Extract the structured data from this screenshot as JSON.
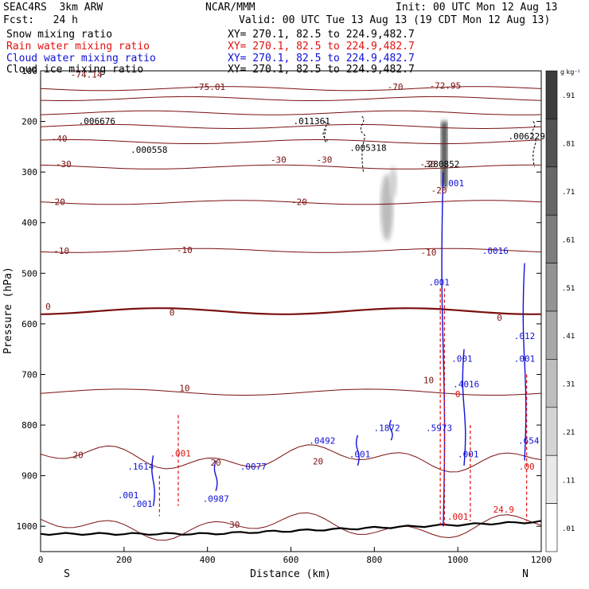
{
  "header": {
    "model": "SEAC4RS  3km ARW",
    "org": "NCAR/MMM",
    "init": "Init: 00 UTC Mon 12 Aug 13",
    "fcst": "Fcst:   24 h",
    "valid": "Valid: 00 UTC Tue 13 Aug 13 (19 CDT Mon 12 Aug 13)"
  },
  "fields": [
    {
      "name": "Snow mixing ratio",
      "xy": "XY= 270.1, 82.5 to 224.9,482.7",
      "color": "#000000"
    },
    {
      "name": "Rain water mixing ratio",
      "xy": "XY= 270.1, 82.5 to 224.9,482.7",
      "color": "#e01010"
    },
    {
      "name": "Cloud water mixing ratio",
      "xy": "XY= 270.1, 82.5 to 224.9,482.7",
      "color": "#1010d8"
    },
    {
      "name": "Cloud ice mixing ratio",
      "xy": "XY= 270.1, 82.5 to 224.9,482.7",
      "color": "#000000"
    }
  ],
  "chart_data": {
    "type": "cross-section",
    "xlabel": "Distance (km)",
    "ylabel": "Pressure (hPa)",
    "xlim": [
      0,
      1200
    ],
    "ylim": [
      1050,
      100
    ],
    "xticks": [
      "0",
      "200",
      "400",
      "600",
      "800",
      "1000",
      "1200"
    ],
    "yticks": [
      "100",
      "200",
      "300",
      "400",
      "500",
      "600",
      "700",
      "800",
      "900",
      "1000"
    ],
    "end_labels": {
      "left": "S",
      "right": "N"
    },
    "colorbar": {
      "unit": "g kg⁻¹",
      "labels": [
        ".91",
        ".81",
        ".71",
        ".61",
        ".51",
        ".41",
        ".31",
        ".21",
        ".11",
        ".01"
      ]
    },
    "temperature_contours": [
      {
        "value": -75,
        "p": 135
      },
      {
        "value": -70,
        "p": 155
      },
      {
        "value": -60,
        "p": 183
      },
      {
        "value": -50,
        "p": 210
      },
      {
        "value": -40,
        "p": 240
      },
      {
        "value": -30,
        "p": 290
      },
      {
        "value": -20,
        "p": 360
      },
      {
        "value": -10,
        "p": 455
      },
      {
        "value": 0,
        "p": 575
      },
      {
        "value": 10,
        "p": 735
      },
      {
        "value": 20,
        "p": 865
      },
      {
        "value": 30,
        "p": 1000
      }
    ],
    "temperature_labels": [
      {
        "text": "-74.14",
        "x": 110,
        "p": 113,
        "rot": 0
      },
      {
        "text": "-75.01",
        "x": 405,
        "p": 138,
        "rot": 0
      },
      {
        "text": "-70",
        "x": 850,
        "p": 138,
        "rot": 0
      },
      {
        "text": "-72.95",
        "x": 970,
        "p": 135,
        "rot": 0
      },
      {
        "text": "-40",
        "x": 45,
        "p": 240,
        "rot": 0
      },
      {
        "text": "-30",
        "x": 55,
        "p": 290,
        "rot": 0
      },
      {
        "text": "-30",
        "x": 570,
        "p": 282,
        "rot": 0
      },
      {
        "text": "-30",
        "x": 680,
        "p": 282,
        "rot": 0
      },
      {
        "text": "-30",
        "x": 928,
        "p": 290,
        "rot": 0
      },
      {
        "text": "-20",
        "x": 40,
        "p": 365,
        "rot": 0
      },
      {
        "text": "-20",
        "x": 620,
        "p": 365,
        "rot": 0
      },
      {
        "text": "-20",
        "x": 955,
        "p": 342,
        "rot": 0
      },
      {
        "text": "-10",
        "x": 50,
        "p": 462,
        "rot": 0
      },
      {
        "text": "-10",
        "x": 345,
        "p": 460,
        "rot": 0
      },
      {
        "text": "-10",
        "x": 930,
        "p": 465,
        "rot": 0
      },
      {
        "text": "0",
        "x": 18,
        "p": 572,
        "rot": 0
      },
      {
        "text": "0",
        "x": 315,
        "p": 584,
        "rot": 0
      },
      {
        "text": "0",
        "x": 1100,
        "p": 594,
        "rot": 0
      },
      {
        "text": "10",
        "x": 345,
        "p": 733,
        "rot": 0
      },
      {
        "text": "10",
        "x": 930,
        "p": 717,
        "rot": 0
      },
      {
        "text": "20",
        "x": 90,
        "p": 865,
        "rot": 0
      },
      {
        "text": "20",
        "x": 420,
        "p": 880,
        "rot": 0
      },
      {
        "text": "20",
        "x": 665,
        "p": 878,
        "rot": 0
      },
      {
        "text": "30",
        "x": 465,
        "p": 1003,
        "rot": 0
      }
    ],
    "max_labels": [
      {
        "text": ".006676",
        "x": 135,
        "p": 205,
        "color": "#000000"
      },
      {
        "text": ".000558",
        "x": 260,
        "p": 262,
        "color": "#000000"
      },
      {
        "text": ".011361",
        "x": 650,
        "p": 205,
        "color": "#000000"
      },
      {
        "text": ".005318",
        "x": 785,
        "p": 258,
        "color": "#000000"
      },
      {
        "text": ".280852",
        "x": 960,
        "p": 290,
        "color": "#000000"
      },
      {
        "text": ".006229",
        "x": 1165,
        "p": 235,
        "color": "#000000"
      },
      {
        "text": ".001",
        "x": 990,
        "p": 328,
        "color": "#1010d8"
      },
      {
        "text": ".0016",
        "x": 1090,
        "p": 462,
        "color": "#1010d8"
      },
      {
        "text": ".001",
        "x": 955,
        "p": 524,
        "color": "#1010d8"
      },
      {
        "text": ".012",
        "x": 1160,
        "p": 630,
        "color": "#1010d8"
      },
      {
        "text": ".001",
        "x": 1010,
        "p": 675,
        "color": "#1010d8"
      },
      {
        "text": ".001",
        "x": 1160,
        "p": 675,
        "color": "#1010d8"
      },
      {
        "text": ".4016",
        "x": 1020,
        "p": 725,
        "color": "#1010d8"
      },
      {
        "text": ".1872",
        "x": 830,
        "p": 812,
        "color": "#1010d8"
      },
      {
        "text": ".5973",
        "x": 955,
        "p": 812,
        "color": "#1010d8"
      },
      {
        "text": ".0492",
        "x": 675,
        "p": 837,
        "color": "#1010d8"
      },
      {
        "text": ".001",
        "x": 765,
        "p": 864,
        "color": "#1010d8"
      },
      {
        "text": ".001",
        "x": 1025,
        "p": 864,
        "color": "#1010d8"
      },
      {
        "text": ".654",
        "x": 1170,
        "p": 837,
        "color": "#1010d8"
      },
      {
        "text": ".1614",
        "x": 240,
        "p": 888,
        "color": "#1010d8"
      },
      {
        "text": ".0077",
        "x": 510,
        "p": 888,
        "color": "#1010d8"
      },
      {
        "text": ".0987",
        "x": 420,
        "p": 952,
        "color": "#1010d8"
      },
      {
        "text": ".001",
        "x": 210,
        "p": 945,
        "color": "#1010d8"
      },
      {
        "text": ".001",
        "x": 243,
        "p": 962,
        "color": "#1010d8"
      },
      {
        "text": ".001",
        "x": 335,
        "p": 862,
        "color": "#e01010"
      },
      {
        "text": ".001",
        "x": 1000,
        "p": 987,
        "color": "#e01010"
      },
      {
        "text": ".00",
        "x": 1165,
        "p": 888,
        "color": "#e01010"
      },
      {
        "text": "0",
        "x": 1000,
        "p": 745,
        "color": "#e01010"
      },
      {
        "text": "24.9",
        "x": 1110,
        "p": 973,
        "color": "#e01010"
      }
    ]
  }
}
